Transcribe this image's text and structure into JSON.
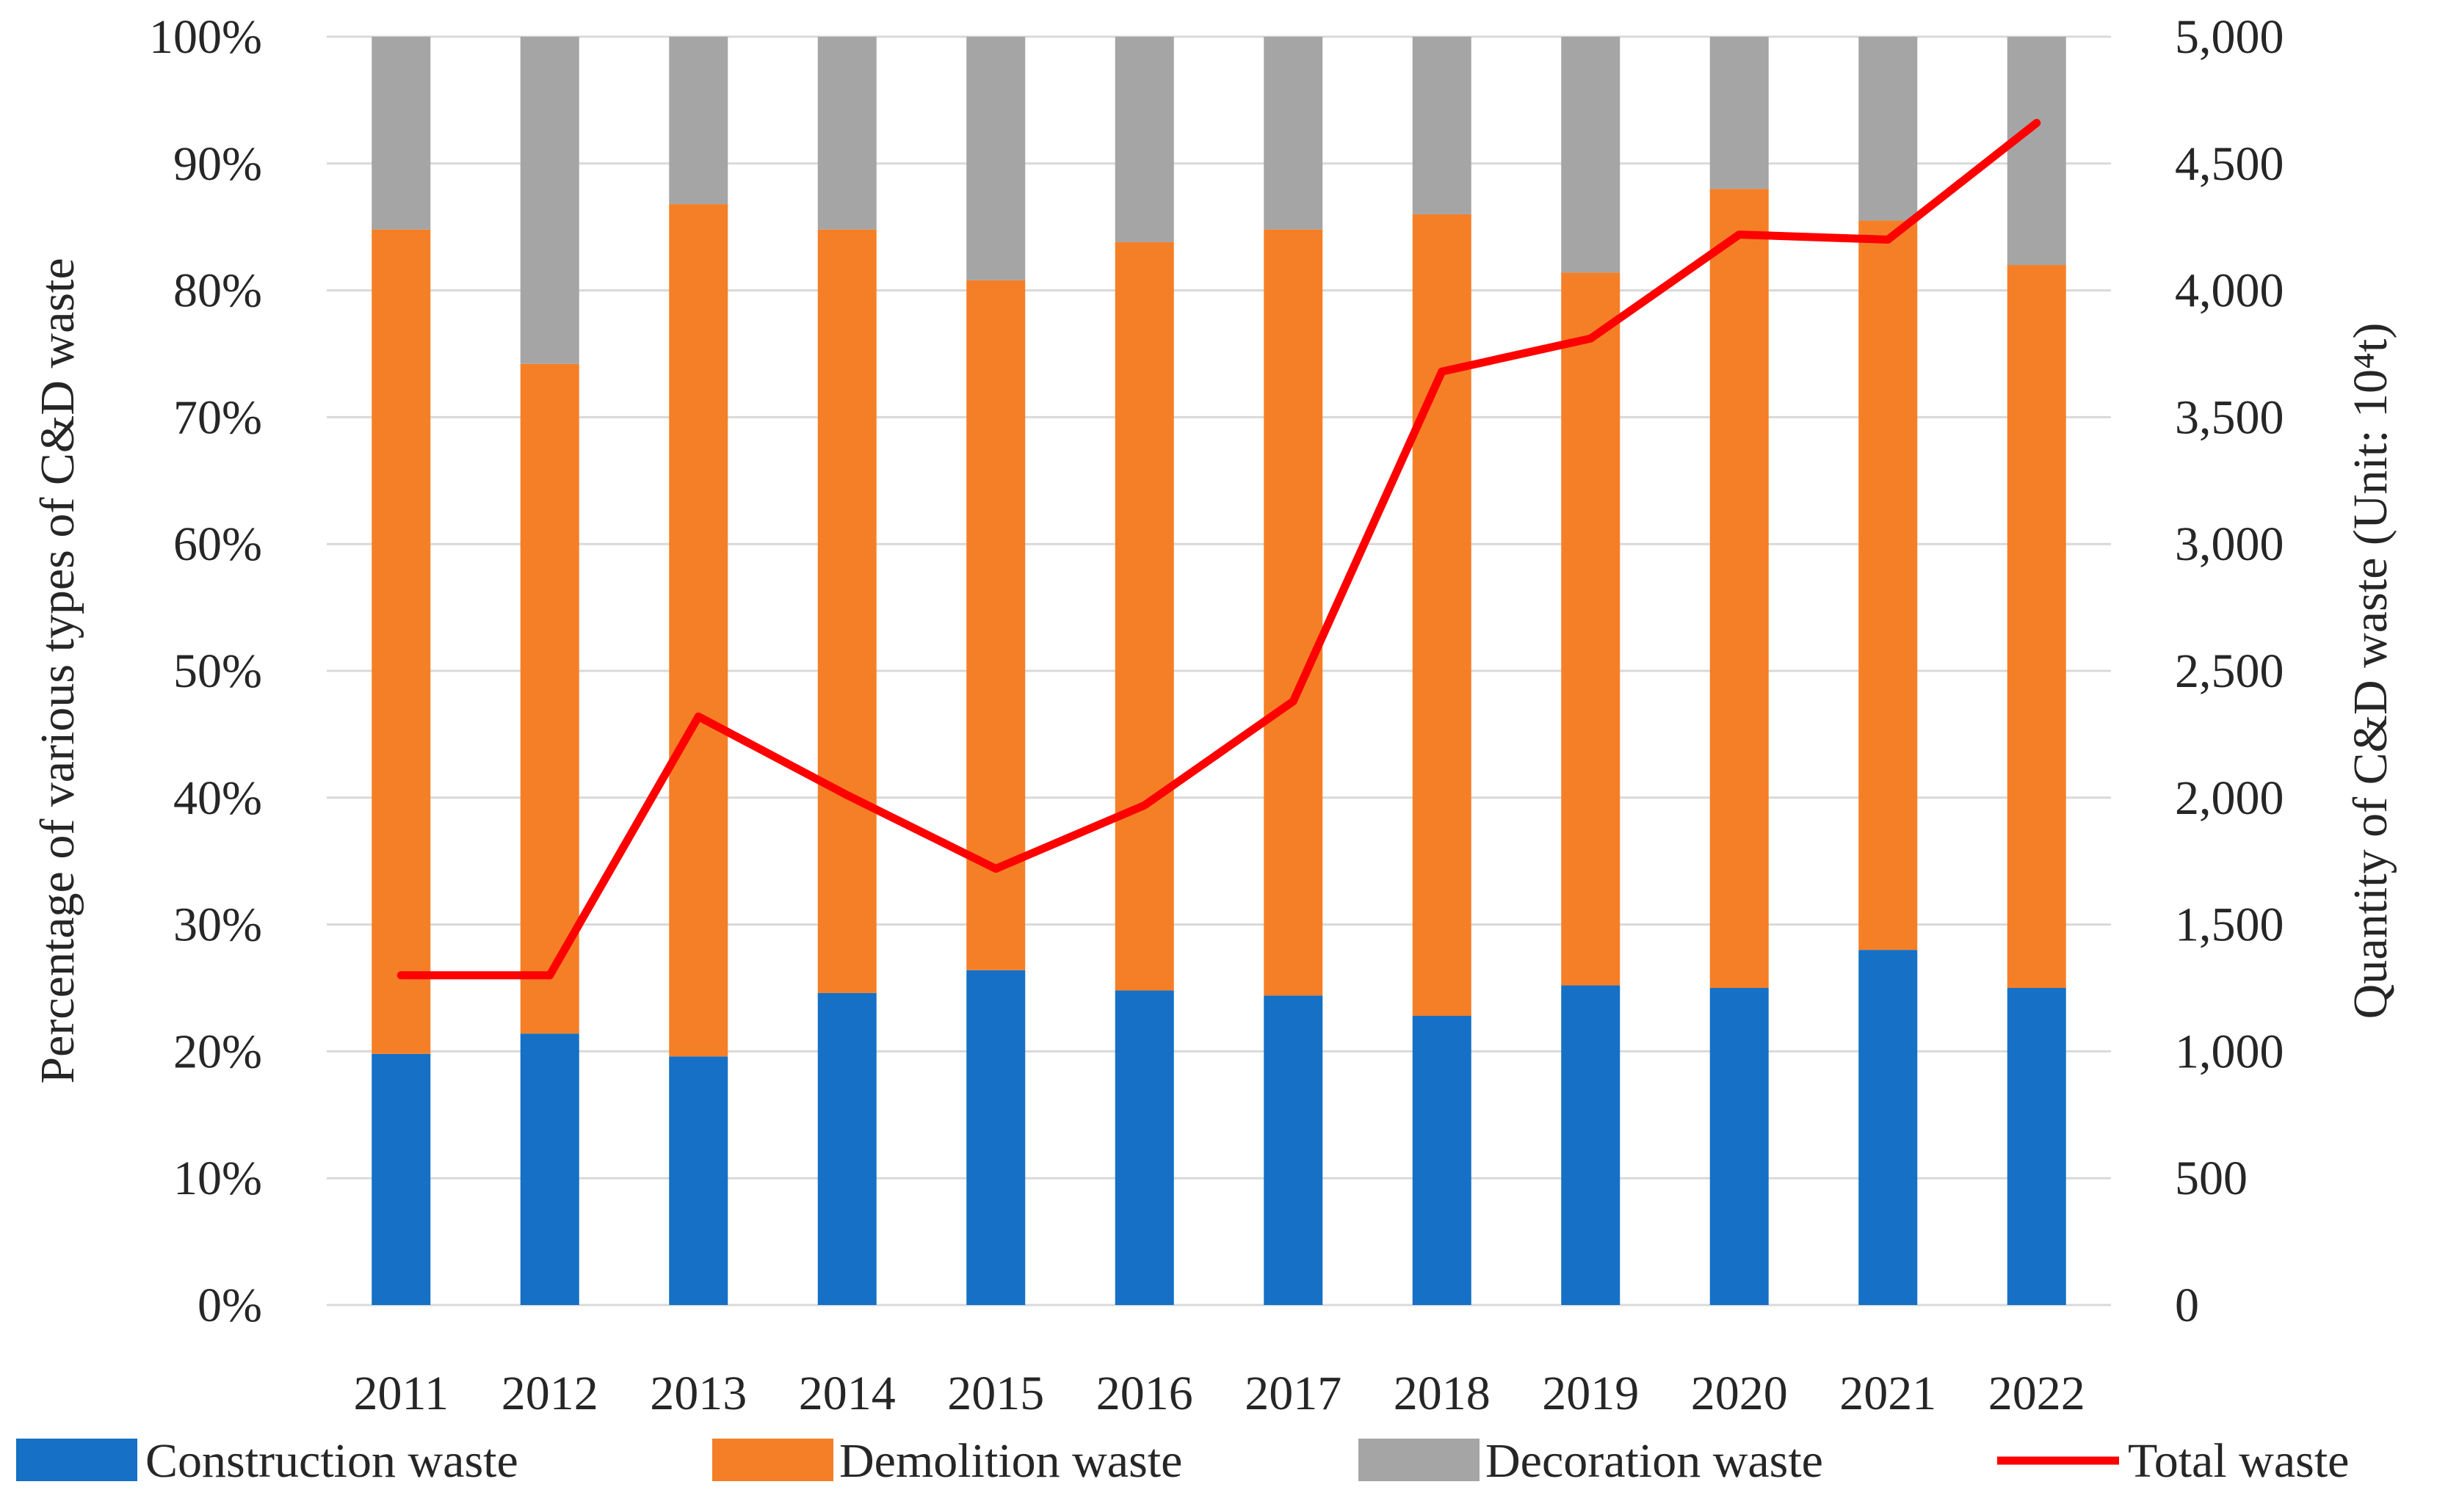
{
  "chart_data": {
    "type": "bar",
    "stacked": true,
    "title": "",
    "categories": [
      "2011",
      "2012",
      "2013",
      "2014",
      "2015",
      "2016",
      "2017",
      "2018",
      "2019",
      "2020",
      "2021",
      "2022"
    ],
    "series": [
      {
        "name": "Construction waste",
        "type": "bar",
        "axis": "left",
        "color": "#1570C6",
        "values": [
          19.8,
          21.4,
          19.6,
          24.6,
          26.4,
          24.8,
          24.4,
          22.8,
          25.2,
          25.0,
          28.0,
          25.0
        ]
      },
      {
        "name": "Demolition waste",
        "type": "bar",
        "axis": "left",
        "color": "#F57F27",
        "values": [
          65.0,
          52.8,
          67.2,
          60.2,
          54.4,
          59.0,
          60.4,
          63.2,
          56.2,
          63.0,
          57.5,
          57.0
        ]
      },
      {
        "name": "Decoration waste",
        "type": "bar",
        "axis": "left",
        "color": "#A5A5A5",
        "values": [
          15.2,
          25.8,
          13.2,
          15.2,
          19.2,
          16.2,
          15.2,
          14.0,
          18.6,
          12.0,
          14.5,
          18.0
        ]
      },
      {
        "name": "Total waste",
        "type": "line",
        "axis": "right",
        "color": "#FF0000",
        "values": [
          1300,
          1300,
          2320,
          2010,
          1720,
          1970,
          2380,
          3680,
          3810,
          4220,
          4200,
          4660
        ]
      }
    ],
    "y_left": {
      "label": "Percentage of various types of C&D waste",
      "range": [
        0,
        100
      ],
      "ticks": [
        0,
        10,
        20,
        30,
        40,
        50,
        60,
        70,
        80,
        90,
        100
      ],
      "tick_labels": [
        "0%",
        "10%",
        "20%",
        "30%",
        "40%",
        "50%",
        "60%",
        "70%",
        "80%",
        "90%",
        "100%"
      ]
    },
    "y_right": {
      "label": "Quantity of C&D waste (Unit: 10⁴t)",
      "range": [
        0,
        5000
      ],
      "ticks": [
        0,
        500,
        1000,
        1500,
        2000,
        2500,
        3000,
        3500,
        4000,
        4500,
        5000
      ],
      "tick_labels": [
        "0",
        "500",
        "1,000",
        "1,500",
        "2,000",
        "2,500",
        "3,000",
        "3,500",
        "4,000",
        "4,500",
        "5,000"
      ]
    },
    "grid": true,
    "legend_position": "bottom",
    "gridline_color": "#D9D9D9"
  }
}
